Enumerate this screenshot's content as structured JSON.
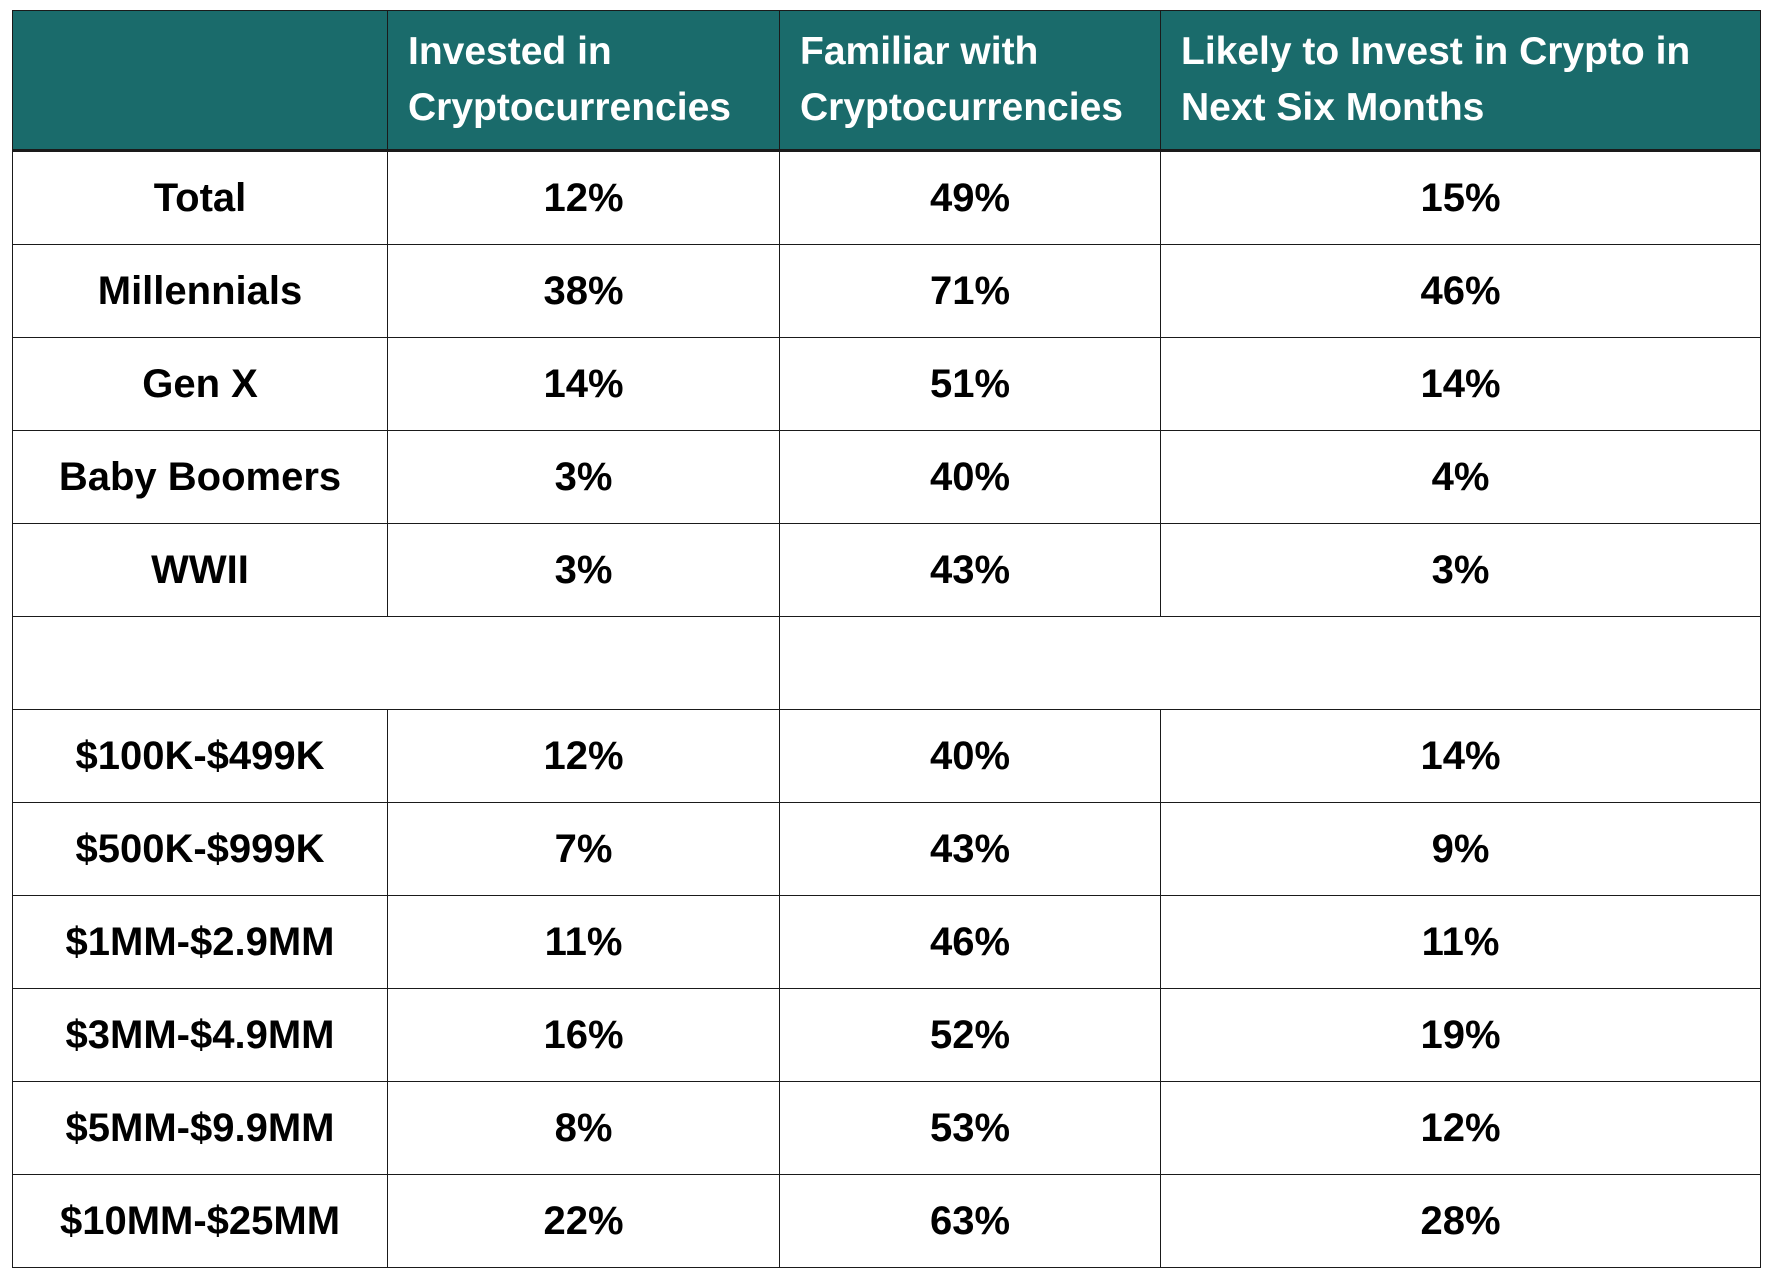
{
  "chart_data": {
    "type": "table",
    "columns": [
      "",
      "Invested in Cryptocurrencies",
      "Familiar with Cryptocurrencies",
      "Likely to Invest in Crypto in Next Six Months"
    ],
    "groups": [
      {
        "rows": [
          {
            "label": "Total",
            "values": [
              "12%",
              "49%",
              "15%"
            ]
          },
          {
            "label": "Millennials",
            "values": [
              "38%",
              "71%",
              "46%"
            ]
          },
          {
            "label": "Gen X",
            "values": [
              "14%",
              "51%",
              "14%"
            ]
          },
          {
            "label": "Baby Boomers",
            "values": [
              "3%",
              "40%",
              "4%"
            ]
          },
          {
            "label": "WWII",
            "values": [
              "3%",
              "43%",
              "3%"
            ]
          }
        ]
      },
      {
        "rows": [
          {
            "label": "$100K-$499K",
            "values": [
              "12%",
              "40%",
              "14%"
            ]
          },
          {
            "label": "$500K-$999K",
            "values": [
              "7%",
              "43%",
              "9%"
            ]
          },
          {
            "label": "$1MM-$2.9MM",
            "values": [
              "11%",
              "46%",
              "11%"
            ]
          },
          {
            "label": "$3MM-$4.9MM",
            "values": [
              "16%",
              "52%",
              "19%"
            ]
          },
          {
            "label": "$5MM-$9.9MM",
            "values": [
              "8%",
              "53%",
              "12%"
            ]
          },
          {
            "label": "$10MM-$25MM",
            "values": [
              "22%",
              "63%",
              "28%"
            ]
          }
        ]
      }
    ],
    "header_color": "#1a6b6b"
  }
}
